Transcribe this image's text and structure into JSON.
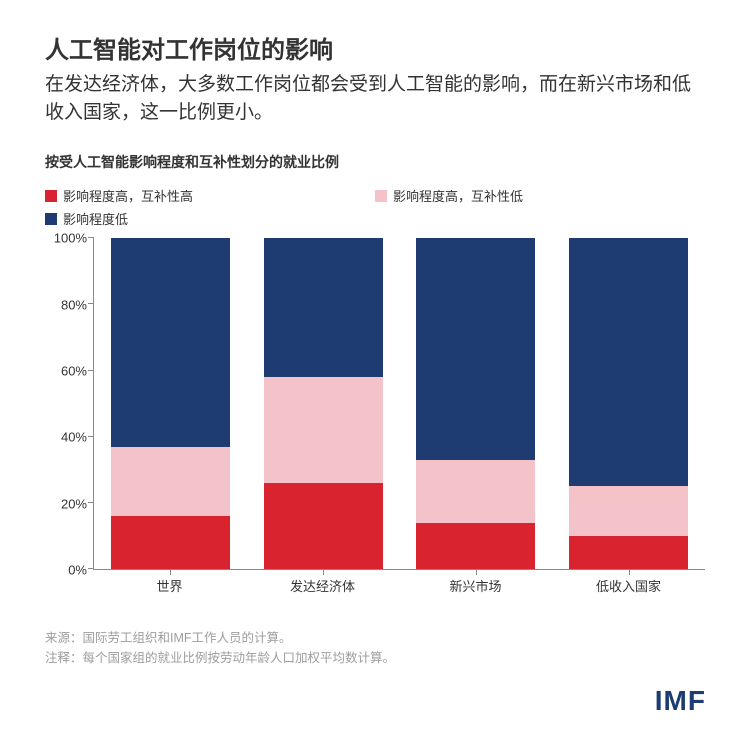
{
  "title": "人工智能对工作岗位的影响",
  "subtitle": "在发达经济体，大多数工作岗位都会受到人工智能的影响，而在新兴市场和低收入国家，这一比例更小。",
  "chart_subtitle": "按受人工智能影响程度和互补性划分的就业比例",
  "legend": {
    "items": [
      {
        "label": "影响程度高，互补性高",
        "color": "#d9232e"
      },
      {
        "label": "影响程度高，互补性低",
        "color": "#f4c3ca"
      },
      {
        "label": "影响程度低",
        "color": "#1e3c72"
      }
    ]
  },
  "chart": {
    "type": "stacked-bar-100",
    "ylim": [
      0,
      100
    ],
    "ytick_step": 20,
    "yticks": [
      {
        "v": 0,
        "label": "0%"
      },
      {
        "v": 20,
        "label": "20%"
      },
      {
        "v": 40,
        "label": "40%"
      },
      {
        "v": 60,
        "label": "60%"
      },
      {
        "v": 80,
        "label": "80%"
      },
      {
        "v": 100,
        "label": "100%"
      }
    ],
    "series_order": [
      "high_high",
      "high_low",
      "low"
    ],
    "series_colors": {
      "high_high": "#d9232e",
      "high_low": "#f4c3ca",
      "low": "#1e3c72"
    },
    "categories": [
      {
        "label": "世界",
        "high_high": 16,
        "high_low": 21,
        "low": 63
      },
      {
        "label": "发达经济体",
        "high_high": 26,
        "high_low": 32,
        "low": 42
      },
      {
        "label": "新兴市场",
        "high_high": 14,
        "high_low": 19,
        "low": 67
      },
      {
        "label": "低收入国家",
        "high_high": 10,
        "high_low": 15,
        "low": 75
      }
    ],
    "bar_width_ratio": 0.78,
    "background_color": "#ffffff"
  },
  "notes": {
    "source_prefix": "来源：",
    "source_text": "国际劳工组织和IMF工作人员的计算。",
    "note_prefix": "注释：",
    "note_text": "每个国家组的就业比例按劳动年龄人口加权平均数计算。"
  },
  "logo": {
    "text": "IMF",
    "color": "#1e3c72"
  }
}
